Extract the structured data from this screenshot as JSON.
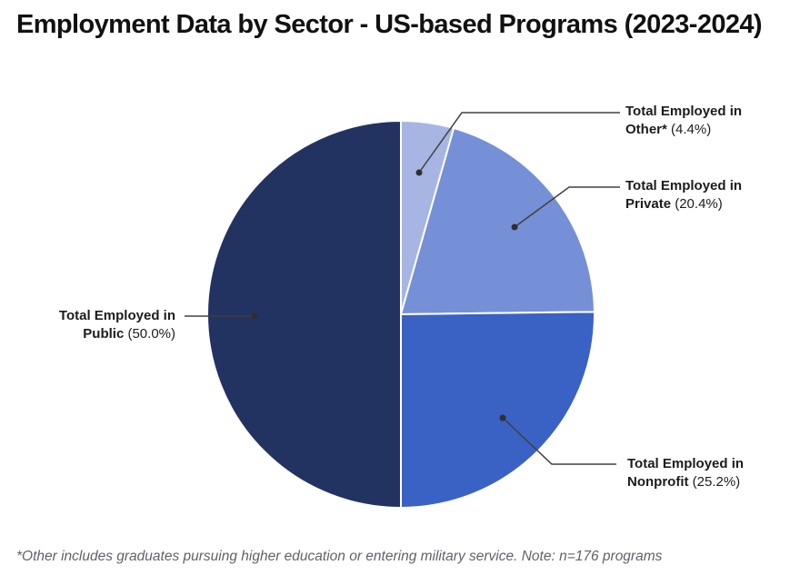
{
  "title": "Employment Data by Sector - US-based Programs (2023-2024)",
  "footnote": "*Other includes graduates pursuing higher education or entering military service. Note: n=176 programs",
  "colors": {
    "background": "#ffffff",
    "title_text": "#111111",
    "label_text": "#1c1c1c",
    "footnote_text": "#5f6368",
    "leader_line": "#404040",
    "callout_dot": "#2f2f2f",
    "slice_border": "#ffffff"
  },
  "chart_data": {
    "type": "pie",
    "title": "Employment Data by Sector - US-based Programs (2023-2024)",
    "start_angle_deg": -90,
    "direction": "clockwise",
    "legend_position": "callout-labels",
    "slices": [
      {
        "id": "other",
        "name": "Total Employed in Other*",
        "value": 4.4,
        "pct_label": "(4.4%)",
        "color": "#a6b5e2"
      },
      {
        "id": "private",
        "name": "Total Employed in Private",
        "value": 20.4,
        "pct_label": "(20.4%)",
        "color": "#7590d6"
      },
      {
        "id": "nonprofit",
        "name": "Total Employed in Nonprofit",
        "value": 25.2,
        "pct_label": "(25.2%)",
        "color": "#3a62c4"
      },
      {
        "id": "public",
        "name": "Total Employed in Public",
        "value": 50.0,
        "pct_label": "(50.0%)",
        "color": "#223362"
      }
    ]
  }
}
